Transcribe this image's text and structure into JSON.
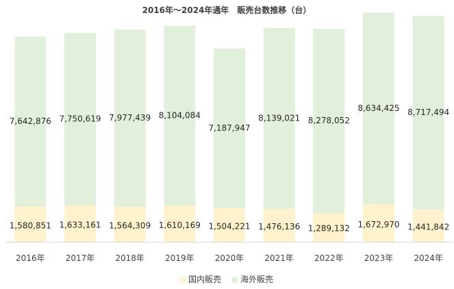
{
  "chart_data": {
    "type": "bar",
    "stacked": true,
    "title": "2016年～2024年通年　販売台数推移（台）",
    "categories": [
      "2016年",
      "2017年",
      "2018年",
      "2019年",
      "2020年",
      "2021年",
      "2022年",
      "2023年",
      "2024年"
    ],
    "series": [
      {
        "name": "国内販売",
        "color": "#fff2cc",
        "values": [
          1580851,
          1633161,
          1564309,
          1610169,
          1504221,
          1476136,
          1289132,
          1672970,
          1441842
        ],
        "labels": [
          "1,580,851",
          "1,633,161",
          "1,564,309",
          "1,610,169",
          "1,504,221",
          "1,476,136",
          "1,289,132",
          "1,672,970",
          "1,441,842"
        ]
      },
      {
        "name": "海外販売",
        "color": "#e2efda",
        "values": [
          7642876,
          7750619,
          7977439,
          8104084,
          7187947,
          8139021,
          8278052,
          8634425,
          8717494
        ],
        "labels": [
          "7,642,876",
          "7,750,619",
          "7,977,439",
          "8,104,084",
          "7,187,947",
          "8,139,021",
          "8,278,052",
          "8,634,425",
          "8,717,494"
        ]
      }
    ],
    "xlabel": "",
    "ylabel": "",
    "ylim": [
      0,
      10500000
    ],
    "grid": false,
    "legend": "bottom"
  }
}
